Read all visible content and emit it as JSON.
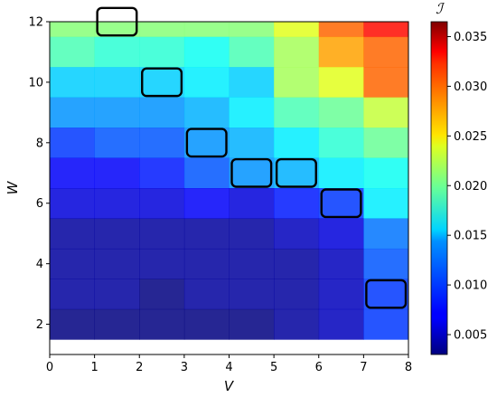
{
  "chart_data": {
    "type": "heatmap",
    "xlabel": "V",
    "ylabel": "W",
    "xlim": [
      0,
      8
    ],
    "ylim": [
      1,
      12
    ],
    "xticks": [
      "0",
      "1",
      "2",
      "3",
      "4",
      "5",
      "6",
      "7",
      "8"
    ],
    "yticks": [
      "2",
      "4",
      "6",
      "8",
      "10",
      "12"
    ],
    "colorbar": {
      "label": "ℐ",
      "range": [
        0.003,
        0.0365
      ],
      "ticks": [
        "0.005",
        "0.010",
        "0.015",
        "0.020",
        "0.025",
        "0.030",
        "0.035"
      ],
      "colormap": "jet"
    },
    "rows_w": [
      12,
      11,
      10,
      9,
      8,
      7,
      6,
      5,
      4,
      3,
      2
    ],
    "cols_v": [
      1,
      2,
      3,
      4,
      5,
      6,
      7,
      8
    ],
    "values": [
      [
        0.02,
        0.02,
        0.02,
        0.02,
        0.02,
        0.023,
        0.029,
        0.032
      ],
      [
        0.018,
        0.017,
        0.017,
        0.016,
        0.018,
        0.021,
        0.027,
        0.029
      ],
      [
        0.014,
        0.014,
        0.014,
        0.015,
        0.014,
        0.021,
        0.023,
        0.029
      ],
      [
        0.012,
        0.012,
        0.012,
        0.013,
        0.015,
        0.018,
        0.019,
        0.022
      ],
      [
        0.009,
        0.01,
        0.01,
        0.012,
        0.013,
        0.015,
        0.017,
        0.019
      ],
      [
        0.007,
        0.007,
        0.008,
        0.01,
        0.012,
        0.013,
        0.015,
        0.016
      ],
      [
        0.006,
        0.006,
        0.006,
        0.007,
        0.006,
        0.008,
        0.009,
        0.015
      ],
      [
        0.004,
        0.004,
        0.004,
        0.004,
        0.004,
        0.005,
        0.006,
        0.011
      ],
      [
        0.004,
        0.004,
        0.004,
        0.004,
        0.004,
        0.004,
        0.005,
        0.01
      ],
      [
        0.004,
        0.004,
        0.003,
        0.004,
        0.004,
        0.004,
        0.005,
        0.009
      ],
      [
        0.003,
        0.003,
        0.003,
        0.003,
        0.003,
        0.004,
        0.005,
        0.009
      ]
    ],
    "highlighted_cells": [
      {
        "v": 2,
        "w": 12
      },
      {
        "v": 3,
        "w": 10
      },
      {
        "v": 4,
        "w": 8
      },
      {
        "v": 5,
        "w": 7
      },
      {
        "v": 6,
        "w": 7
      },
      {
        "v": 7,
        "w": 6
      },
      {
        "v": 8,
        "w": 3
      }
    ]
  }
}
